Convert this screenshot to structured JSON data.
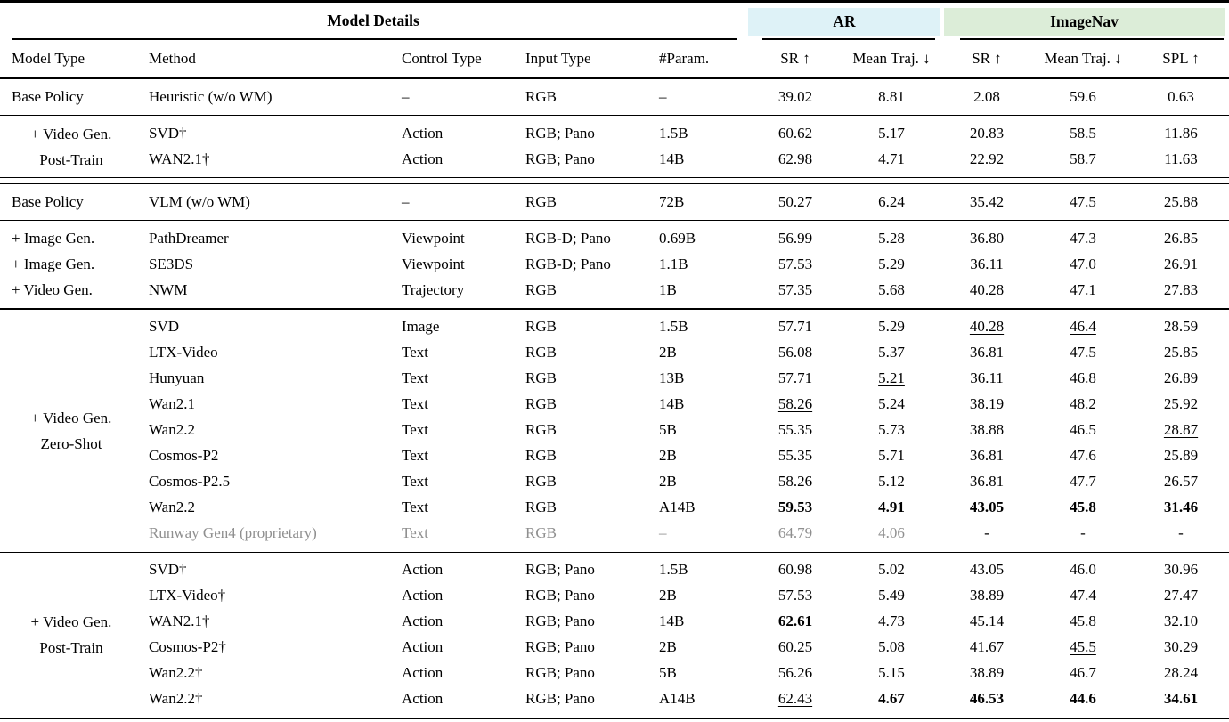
{
  "colors": {
    "ar_bg": "#def2f7",
    "imagenav_bg": "#dcedd8",
    "muted": "#8f8f8f",
    "rule": "#000000"
  },
  "header": {
    "model_details": "Model Details",
    "ar": "AR",
    "imagenav": "ImageNav",
    "columns": [
      "Model Type",
      "Method",
      "Control Type",
      "Input Type",
      "#Param.",
      "SR ↑",
      "Mean Traj. ↓",
      "SR ↑",
      "Mean Traj. ↓",
      "SPL ↑"
    ]
  },
  "sections": [
    {
      "rule_after": "thin",
      "rows": [
        {
          "model_type": "Base Policy",
          "method": "Heuristic (w/o WM)",
          "control": "–",
          "input": "RGB",
          "params": "–",
          "metrics": [
            {
              "t": "39.02"
            },
            {
              "t": "8.81"
            },
            {
              "t": "2.08"
            },
            {
              "t": "59.6"
            },
            {
              "t": "0.63"
            }
          ]
        }
      ]
    },
    {
      "rule_after": "double",
      "group_label": [
        "+ Video Gen.",
        "Post-Train"
      ],
      "rows": [
        {
          "method": "SVD†",
          "control": "Action",
          "input": "RGB; Pano",
          "params": "1.5B",
          "metrics": [
            {
              "t": "60.62"
            },
            {
              "t": "5.17"
            },
            {
              "t": "20.83"
            },
            {
              "t": "58.5"
            },
            {
              "t": "11.86"
            }
          ]
        },
        {
          "method": "WAN2.1†",
          "control": "Action",
          "input": "RGB; Pano",
          "params": "14B",
          "metrics": [
            {
              "t": "62.98"
            },
            {
              "t": "4.71"
            },
            {
              "t": "22.92"
            },
            {
              "t": "58.7"
            },
            {
              "t": "11.63"
            }
          ]
        }
      ]
    },
    {
      "rule_after": "thin",
      "rows": [
        {
          "model_type": "Base Policy",
          "method": "VLM (w/o WM)",
          "control": "–",
          "input": "RGB",
          "params": "72B",
          "metrics": [
            {
              "t": "50.27"
            },
            {
              "t": "6.24"
            },
            {
              "t": "35.42"
            },
            {
              "t": "47.5"
            },
            {
              "t": "25.88"
            }
          ]
        }
      ]
    },
    {
      "rule_after": "thin",
      "rows": [
        {
          "model_type": "+ Image Gen.",
          "method": "PathDreamer",
          "control": "Viewpoint",
          "input": "RGB-D; Pano",
          "params": "0.69B",
          "metrics": [
            {
              "t": "56.99"
            },
            {
              "t": "5.28"
            },
            {
              "t": "36.80"
            },
            {
              "t": "47.3"
            },
            {
              "t": "26.85"
            }
          ]
        },
        {
          "model_type": "+ Image Gen.",
          "method": "SE3DS",
          "control": "Viewpoint",
          "input": "RGB-D; Pano",
          "params": "1.1B",
          "metrics": [
            {
              "t": "57.53"
            },
            {
              "t": "5.29"
            },
            {
              "t": "36.11"
            },
            {
              "t": "47.0"
            },
            {
              "t": "26.91"
            }
          ]
        },
        {
          "model_type": "+ Video Gen.",
          "method": "NWM",
          "control": "Trajectory",
          "input": "RGB",
          "params": "1B",
          "metrics": [
            {
              "t": "57.35"
            },
            {
              "t": "5.68"
            },
            {
              "t": "40.28"
            },
            {
              "t": "47.1"
            },
            {
              "t": "27.83"
            }
          ]
        }
      ]
    },
    {
      "rule_after": "thin",
      "group_label": [
        "+ Video Gen.",
        "Zero-Shot"
      ],
      "rows": [
        {
          "method": "SVD",
          "control": "Image",
          "input": "RGB",
          "params": "1.5B",
          "metrics": [
            {
              "t": "57.71"
            },
            {
              "t": "5.29"
            },
            {
              "t": "40.28",
              "s": "u"
            },
            {
              "t": "46.4",
              "s": "u"
            },
            {
              "t": "28.59"
            }
          ]
        },
        {
          "method": "LTX-Video",
          "control": "Text",
          "input": "RGB",
          "params": "2B",
          "metrics": [
            {
              "t": "56.08"
            },
            {
              "t": "5.37"
            },
            {
              "t": "36.81"
            },
            {
              "t": "47.5"
            },
            {
              "t": "25.85"
            }
          ]
        },
        {
          "method": "Hunyuan",
          "control": "Text",
          "input": "RGB",
          "params": "13B",
          "metrics": [
            {
              "t": "57.71"
            },
            {
              "t": "5.21",
              "s": "u"
            },
            {
              "t": "36.11"
            },
            {
              "t": "46.8"
            },
            {
              "t": "26.89"
            }
          ]
        },
        {
          "method": "Wan2.1",
          "control": "Text",
          "input": "RGB",
          "params": "14B",
          "metrics": [
            {
              "t": "58.26",
              "s": "u"
            },
            {
              "t": "5.24"
            },
            {
              "t": "38.19"
            },
            {
              "t": "48.2"
            },
            {
              "t": "25.92"
            }
          ]
        },
        {
          "method": "Wan2.2",
          "control": "Text",
          "input": "RGB",
          "params": "5B",
          "metrics": [
            {
              "t": "55.35"
            },
            {
              "t": "5.73"
            },
            {
              "t": "38.88"
            },
            {
              "t": "46.5"
            },
            {
              "t": "28.87",
              "s": "u"
            }
          ]
        },
        {
          "method": "Cosmos-P2",
          "control": "Text",
          "input": "RGB",
          "params": "2B",
          "metrics": [
            {
              "t": "55.35"
            },
            {
              "t": "5.71"
            },
            {
              "t": "36.81"
            },
            {
              "t": "47.6"
            },
            {
              "t": "25.89"
            }
          ]
        },
        {
          "method": "Cosmos-P2.5",
          "control": "Text",
          "input": "RGB",
          "params": "2B",
          "metrics": [
            {
              "t": "58.26"
            },
            {
              "t": "5.12"
            },
            {
              "t": "36.81"
            },
            {
              "t": "47.7"
            },
            {
              "t": "26.57"
            }
          ]
        },
        {
          "method": "Wan2.2",
          "control": "Text",
          "input": "RGB",
          "params": "A14B",
          "metrics": [
            {
              "t": "59.53",
              "s": "b"
            },
            {
              "t": "4.91",
              "s": "b"
            },
            {
              "t": "43.05",
              "s": "b"
            },
            {
              "t": "45.8",
              "s": "b"
            },
            {
              "t": "31.46",
              "s": "b"
            }
          ]
        },
        {
          "method": "Runway Gen4 (proprietary)",
          "control": "Text",
          "input": "RGB",
          "params": "–",
          "muted": true,
          "metrics": [
            {
              "t": "64.79",
              "s": "g"
            },
            {
              "t": "4.06",
              "s": "g"
            },
            {
              "t": "-"
            },
            {
              "t": "-"
            },
            {
              "t": "-"
            }
          ]
        }
      ]
    },
    {
      "rule_after": "none",
      "group_label": [
        "+ Video Gen.",
        "Post-Train"
      ],
      "rows": [
        {
          "method": "SVD†",
          "control": "Action",
          "input": "RGB; Pano",
          "params": "1.5B",
          "metrics": [
            {
              "t": "60.98"
            },
            {
              "t": "5.02"
            },
            {
              "t": "43.05"
            },
            {
              "t": "46.0"
            },
            {
              "t": "30.96"
            }
          ]
        },
        {
          "method": "LTX-Video†",
          "control": "Action",
          "input": "RGB; Pano",
          "params": "2B",
          "metrics": [
            {
              "t": "57.53"
            },
            {
              "t": "5.49"
            },
            {
              "t": "38.89"
            },
            {
              "t": "47.4"
            },
            {
              "t": "27.47"
            }
          ]
        },
        {
          "method": "WAN2.1†",
          "control": "Action",
          "input": "RGB; Pano",
          "params": "14B",
          "metrics": [
            {
              "t": "62.61",
              "s": "b"
            },
            {
              "t": "4.73",
              "s": "u"
            },
            {
              "t": "45.14",
              "s": "u"
            },
            {
              "t": "45.8"
            },
            {
              "t": "32.10",
              "s": "u"
            }
          ]
        },
        {
          "method": "Cosmos-P2†",
          "control": "Action",
          "input": "RGB; Pano",
          "params": "2B",
          "metrics": [
            {
              "t": "60.25"
            },
            {
              "t": "5.08"
            },
            {
              "t": "41.67"
            },
            {
              "t": "45.5",
              "s": "u"
            },
            {
              "t": "30.29"
            }
          ]
        },
        {
          "method": "Wan2.2†",
          "control": "Action",
          "input": "RGB; Pano",
          "params": "5B",
          "metrics": [
            {
              "t": "56.26"
            },
            {
              "t": "5.15"
            },
            {
              "t": "38.89"
            },
            {
              "t": "46.7"
            },
            {
              "t": "28.24"
            }
          ]
        },
        {
          "method": "Wan2.2†",
          "control": "Action",
          "input": "RGB; Pano",
          "params": "A14B",
          "metrics": [
            {
              "t": "62.43",
              "s": "u"
            },
            {
              "t": "4.67",
              "s": "b"
            },
            {
              "t": "46.53",
              "s": "b"
            },
            {
              "t": "44.6",
              "s": "b"
            },
            {
              "t": "34.61",
              "s": "b"
            }
          ]
        }
      ]
    }
  ]
}
